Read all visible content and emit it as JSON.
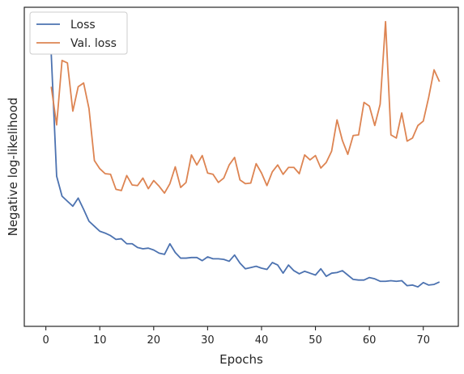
{
  "chart_data": {
    "type": "line",
    "title": "",
    "xlabel": "Epochs",
    "ylabel": "Negative log-likelihood",
    "xlim": [
      -4,
      76.5
    ],
    "ylim": [
      0.045,
      0.555
    ],
    "xticks": [
      0,
      10,
      20,
      30,
      40,
      50,
      60,
      70
    ],
    "y_tick_labels_shown": false,
    "grid": false,
    "legend_position": "top-left",
    "series": [
      {
        "name": "Loss",
        "color": "#4c72b0",
        "x": [
          1,
          2,
          3,
          4,
          5,
          6,
          7,
          8,
          9,
          10,
          11,
          12,
          13,
          14,
          15,
          16,
          17,
          18,
          19,
          20,
          21,
          22,
          23,
          24,
          25,
          26,
          27,
          28,
          29,
          30,
          31,
          32,
          33,
          34,
          35,
          36,
          37,
          38,
          39,
          40,
          41,
          42,
          43,
          44,
          45,
          46,
          47,
          48,
          49,
          50,
          51,
          52,
          53,
          54,
          55,
          56,
          57,
          58,
          59,
          60,
          61,
          62,
          63,
          64,
          65,
          66,
          67,
          68,
          69,
          70,
          71,
          72,
          73
        ],
        "values": [
          0.48,
          0.285,
          0.253,
          0.245,
          0.237,
          0.25,
          0.232,
          0.213,
          0.205,
          0.197,
          0.194,
          0.19,
          0.184,
          0.185,
          0.177,
          0.177,
          0.171,
          0.169,
          0.17,
          0.167,
          0.162,
          0.16,
          0.177,
          0.163,
          0.154,
          0.154,
          0.155,
          0.155,
          0.15,
          0.156,
          0.153,
          0.153,
          0.152,
          0.149,
          0.159,
          0.146,
          0.137,
          0.139,
          0.141,
          0.138,
          0.136,
          0.147,
          0.143,
          0.13,
          0.143,
          0.134,
          0.129,
          0.133,
          0.13,
          0.127,
          0.137,
          0.125,
          0.13,
          0.131,
          0.134,
          0.127,
          0.12,
          0.119,
          0.119,
          0.123,
          0.121,
          0.117,
          0.117,
          0.118,
          0.117,
          0.118,
          0.11,
          0.111,
          0.108,
          0.115,
          0.111,
          0.112,
          0.116
        ]
      },
      {
        "name": "Val. loss",
        "color": "#dd8452",
        "x": [
          1,
          2,
          3,
          4,
          5,
          6,
          7,
          8,
          9,
          10,
          11,
          12,
          13,
          14,
          15,
          16,
          17,
          18,
          19,
          20,
          21,
          22,
          23,
          24,
          25,
          26,
          27,
          28,
          29,
          30,
          31,
          32,
          33,
          34,
          35,
          36,
          37,
          38,
          39,
          40,
          41,
          42,
          43,
          44,
          45,
          46,
          47,
          48,
          49,
          50,
          51,
          52,
          53,
          54,
          55,
          56,
          57,
          58,
          59,
          60,
          61,
          62,
          63,
          64,
          65,
          66,
          67,
          68,
          69,
          70,
          71,
          72,
          73
        ],
        "values": [
          0.428,
          0.367,
          0.47,
          0.466,
          0.389,
          0.428,
          0.434,
          0.393,
          0.31,
          0.297,
          0.289,
          0.288,
          0.264,
          0.262,
          0.286,
          0.271,
          0.27,
          0.282,
          0.265,
          0.278,
          0.269,
          0.258,
          0.273,
          0.3,
          0.267,
          0.275,
          0.319,
          0.303,
          0.318,
          0.29,
          0.288,
          0.275,
          0.282,
          0.303,
          0.315,
          0.279,
          0.273,
          0.274,
          0.305,
          0.29,
          0.27,
          0.292,
          0.303,
          0.288,
          0.299,
          0.299,
          0.289,
          0.319,
          0.311,
          0.318,
          0.298,
          0.307,
          0.325,
          0.375,
          0.342,
          0.32,
          0.35,
          0.351,
          0.403,
          0.397,
          0.366,
          0.4,
          0.532,
          0.351,
          0.346,
          0.386,
          0.341,
          0.346,
          0.366,
          0.373,
          0.411,
          0.455,
          0.436
        ]
      }
    ]
  }
}
